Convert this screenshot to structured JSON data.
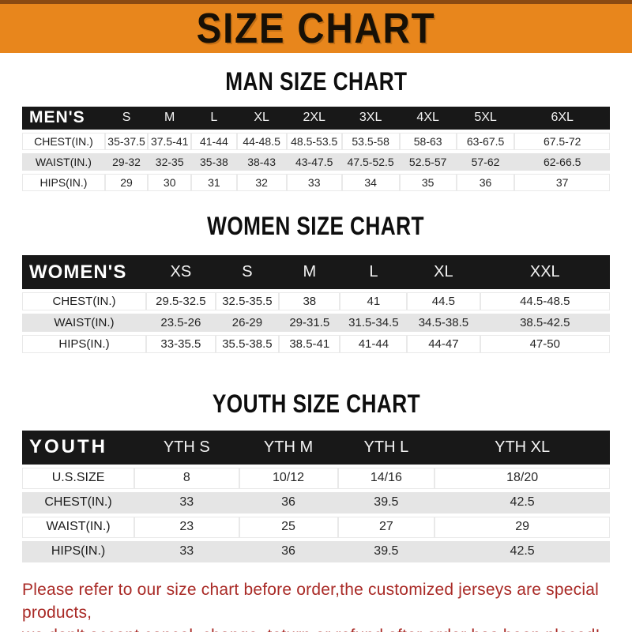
{
  "banner": {
    "title": "SIZE CHART"
  },
  "colors": {
    "banner_orange": "#e8861c",
    "banner_border": "#8a4a12",
    "header_bar": "#181818",
    "row_gray": "#e5e5e5",
    "notice_red": "#a92a26"
  },
  "sections": [
    {
      "title": "MAN SIZE CHART",
      "group_label": "MEN'S",
      "columns": [
        "S",
        "M",
        "L",
        "XL",
        "2XL",
        "3XL",
        "4XL",
        "5XL",
        "6XL"
      ],
      "rows": [
        {
          "label": "CHEST(IN.)",
          "values": [
            "35-37.5",
            "37.5-41",
            "41-44",
            "44-48.5",
            "48.5-53.5",
            "53.5-58",
            "58-63",
            "63-67.5",
            "67.5-72"
          ]
        },
        {
          "label": "WAIST(IN.)",
          "values": [
            "29-32",
            "32-35",
            "35-38",
            "38-43",
            "43-47.5",
            "47.5-52.5",
            "52.5-57",
            "57-62",
            "62-66.5"
          ]
        },
        {
          "label": "HIPS(IN.)",
          "values": [
            "29",
            "30",
            "31",
            "32",
            "33",
            "34",
            "35",
            "36",
            "37"
          ]
        }
      ]
    },
    {
      "title": "WOMEN SIZE CHART",
      "group_label": "WOMEN'S",
      "columns": [
        "XS",
        "S",
        "M",
        "L",
        "XL",
        "XXL"
      ],
      "rows": [
        {
          "label": "CHEST(IN.)",
          "values": [
            "29.5-32.5",
            "32.5-35.5",
            "38",
            "41",
            "44.5",
            "44.5-48.5"
          ]
        },
        {
          "label": "WAIST(IN.)",
          "values": [
            "23.5-26",
            "26-29",
            "29-31.5",
            "31.5-34.5",
            "34.5-38.5",
            "38.5-42.5"
          ]
        },
        {
          "label": "HIPS(IN.)",
          "values": [
            "33-35.5",
            "35.5-38.5",
            "38.5-41",
            "41-44",
            "44-47",
            "47-50"
          ]
        }
      ]
    },
    {
      "title": "YOUTH SIZE CHART",
      "group_label": "YOUTH",
      "columns": [
        "YTH S",
        "YTH M",
        "YTH L",
        "YTH XL"
      ],
      "rows": [
        {
          "label": "U.S.SIZE",
          "values": [
            "8",
            "10/12",
            "14/16",
            "18/20"
          ]
        },
        {
          "label": "CHEST(IN.)",
          "values": [
            "33",
            "36",
            "39.5",
            "42.5"
          ]
        },
        {
          "label": "WAIST(IN.)",
          "values": [
            "23",
            "25",
            "27",
            "29"
          ]
        },
        {
          "label": "HIPS(IN.)",
          "values": [
            "33",
            "36",
            "39.5",
            "42.5"
          ]
        }
      ]
    }
  ],
  "notice": {
    "lines": [
      "Please refer to our size chart before order,the customized jerseys are special products,",
      "we don't accept cancel, change, teturn or refund after order has been placed!"
    ]
  }
}
